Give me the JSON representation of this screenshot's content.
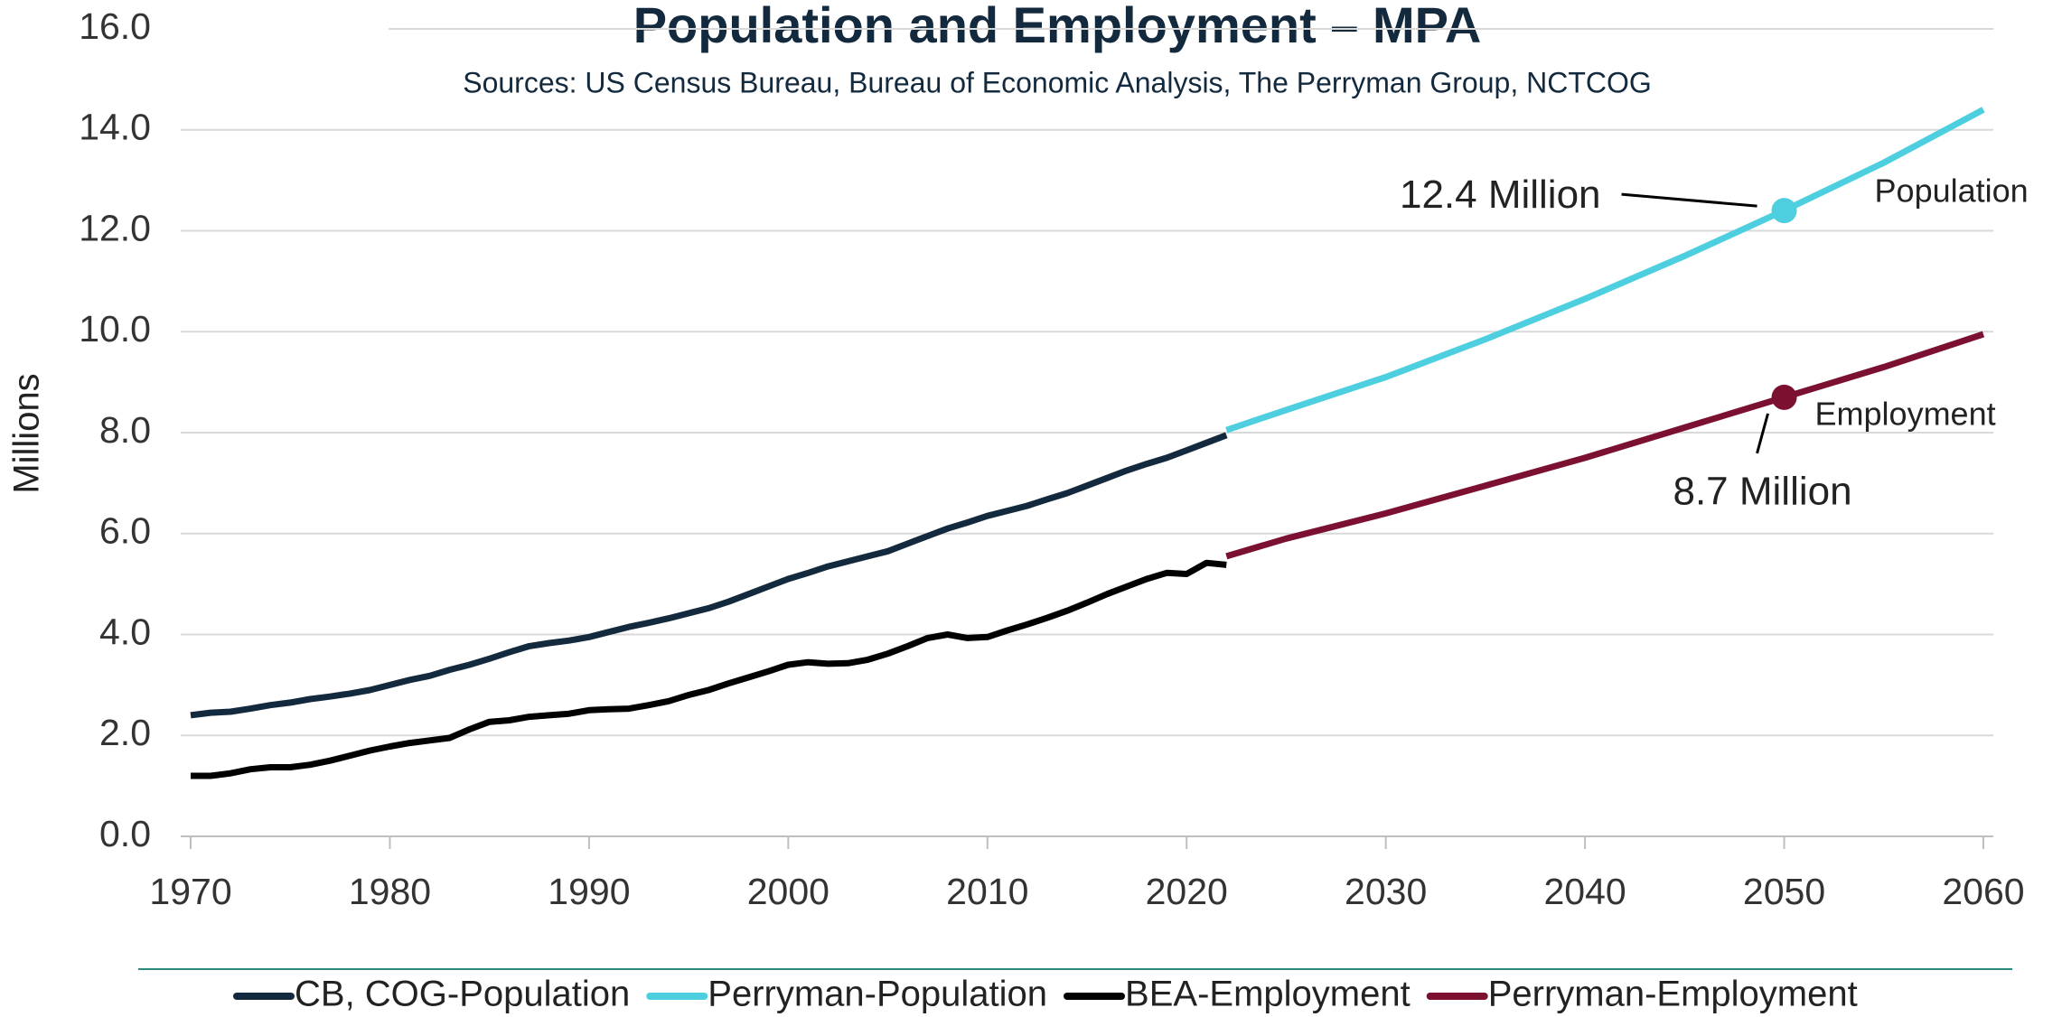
{
  "chart_data": {
    "type": "line",
    "title": "Population and Employment – MPA",
    "subtitle": "Sources: US Census Bureau, Bureau of Economic Analysis, The Perryman Group, NCTCOG",
    "y_label": "Millions",
    "xlim": [
      1969.5,
      2060.5
    ],
    "xticks": [
      1970,
      1980,
      1990,
      2000,
      2010,
      2020,
      2030,
      2040,
      2050,
      2060
    ],
    "ylim": [
      0,
      16
    ],
    "yticks": [
      {
        "value": 0,
        "label": "0.0"
      },
      {
        "value": 2,
        "label": "2.0"
      },
      {
        "value": 4,
        "label": "4.0"
      },
      {
        "value": 6,
        "label": "6.0"
      },
      {
        "value": 8,
        "label": "8.0"
      },
      {
        "value": 10,
        "label": "10.0"
      },
      {
        "value": 12,
        "label": "12.0"
      },
      {
        "value": 14,
        "label": "14.0"
      },
      {
        "value": 16,
        "label": "16.0"
      }
    ],
    "grid": true,
    "legend": "bottom",
    "series": [
      {
        "name": "CB, COG-Population",
        "color": "#13293d",
        "x": [
          1970,
          1971,
          1972,
          1973,
          1974,
          1975,
          1976,
          1977,
          1978,
          1979,
          1980,
          1981,
          1982,
          1983,
          1984,
          1985,
          1986,
          1987,
          1988,
          1989,
          1990,
          1991,
          1992,
          1993,
          1994,
          1995,
          1996,
          1997,
          1998,
          1999,
          2000,
          2001,
          2002,
          2003,
          2004,
          2005,
          2006,
          2007,
          2008,
          2009,
          2010,
          2011,
          2012,
          2013,
          2014,
          2015,
          2016,
          2017,
          2018,
          2019,
          2020,
          2021,
          2022
        ],
        "values": [
          2.4,
          2.45,
          2.47,
          2.53,
          2.6,
          2.65,
          2.72,
          2.77,
          2.83,
          2.9,
          3.0,
          3.1,
          3.18,
          3.3,
          3.4,
          3.52,
          3.65,
          3.77,
          3.83,
          3.88,
          3.95,
          4.05,
          4.15,
          4.23,
          4.32,
          4.42,
          4.52,
          4.65,
          4.8,
          4.95,
          5.1,
          5.22,
          5.35,
          5.45,
          5.55,
          5.65,
          5.8,
          5.95,
          6.1,
          6.22,
          6.35,
          6.45,
          6.55,
          6.68,
          6.8,
          6.95,
          7.1,
          7.25,
          7.38,
          7.5,
          7.65,
          7.8,
          7.95
        ]
      },
      {
        "name": "Perryman-Population",
        "color": "#4dcfe0",
        "x": [
          2022,
          2025,
          2030,
          2035,
          2040,
          2045,
          2050,
          2055,
          2060
        ],
        "values": [
          8.05,
          8.45,
          9.1,
          9.85,
          10.65,
          11.5,
          12.4,
          13.35,
          14.4
        ]
      },
      {
        "name": "BEA-Employment",
        "color": "#000000",
        "x": [
          1970,
          1971,
          1972,
          1973,
          1974,
          1975,
          1976,
          1977,
          1978,
          1979,
          1980,
          1981,
          1982,
          1983,
          1984,
          1985,
          1986,
          1987,
          1988,
          1989,
          1990,
          1991,
          1992,
          1993,
          1994,
          1995,
          1996,
          1997,
          1998,
          1999,
          2000,
          2001,
          2002,
          2003,
          2004,
          2005,
          2006,
          2007,
          2008,
          2009,
          2010,
          2011,
          2012,
          2013,
          2014,
          2015,
          2016,
          2017,
          2018,
          2019,
          2020,
          2021,
          2022
        ],
        "values": [
          1.2,
          1.2,
          1.25,
          1.33,
          1.37,
          1.37,
          1.42,
          1.5,
          1.6,
          1.7,
          1.78,
          1.85,
          1.9,
          1.95,
          2.12,
          2.27,
          2.3,
          2.37,
          2.4,
          2.43,
          2.5,
          2.52,
          2.53,
          2.6,
          2.68,
          2.8,
          2.9,
          3.03,
          3.15,
          3.27,
          3.4,
          3.45,
          3.42,
          3.43,
          3.5,
          3.62,
          3.77,
          3.93,
          4.0,
          3.93,
          3.95,
          4.08,
          4.2,
          4.33,
          4.47,
          4.63,
          4.8,
          4.95,
          5.1,
          5.22,
          5.2,
          5.42,
          5.38
        ]
      },
      {
        "name": "Perryman-Employment",
        "color": "#7b1030",
        "x": [
          2022,
          2025,
          2030,
          2035,
          2040,
          2045,
          2050,
          2055,
          2060
        ],
        "values": [
          5.55,
          5.9,
          6.4,
          6.95,
          7.5,
          8.1,
          8.7,
          9.3,
          9.95
        ]
      }
    ],
    "annotations": [
      {
        "text": "12.4 Million",
        "x": 2050,
        "y": 12.4,
        "color": "#4dcfe0"
      },
      {
        "text": "8.7 Million",
        "x": 2050,
        "y": 8.7,
        "color": "#7b1030"
      }
    ],
    "line_labels": [
      "Population",
      "Employment"
    ]
  }
}
